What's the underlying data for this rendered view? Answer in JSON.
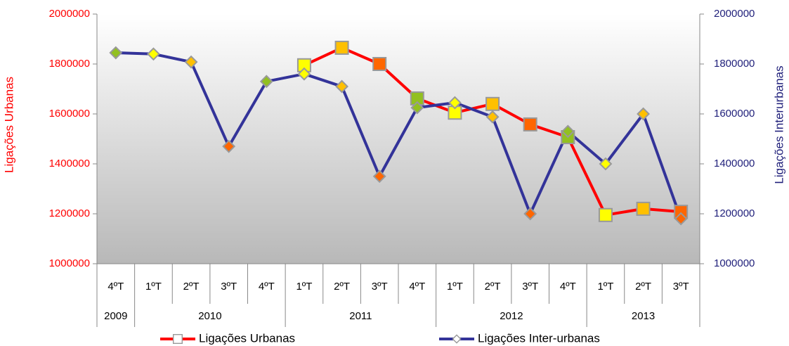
{
  "chart_data": {
    "type": "line",
    "categories": [
      "4ºT",
      "1ºT",
      "2ºT",
      "3ºT",
      "4ºT",
      "1ºT",
      "2ºT",
      "3ºT",
      "4ºT",
      "1ºT",
      "2ºT",
      "3ºT",
      "4ºT",
      "1ºT",
      "2ºT",
      "3ºT"
    ],
    "groups": [
      {
        "name": "2009",
        "count": 1
      },
      {
        "name": "2010",
        "count": 4
      },
      {
        "name": "2011",
        "count": 4
      },
      {
        "name": "2012",
        "count": 4
      },
      {
        "name": "2013",
        "count": 3
      }
    ],
    "y_label": "Ligações Urbanas",
    "y2_label": "Ligações Interurbanas",
    "ylim": [
      1000000,
      2000000
    ],
    "yticks": [
      1000000,
      1200000,
      1400000,
      1600000,
      1800000,
      2000000
    ],
    "y2lim": [
      1000000,
      2000000
    ],
    "y2ticks": [
      1000000,
      1200000,
      1400000,
      1600000,
      1800000,
      2000000
    ],
    "y_color": "#ff0000",
    "y2_color": "#1f1f7a",
    "series": [
      {
        "name": "Ligações Urbanas",
        "color": "#ff0000",
        "marker": "square",
        "values": [
          null,
          null,
          null,
          null,
          null,
          1795000,
          1865000,
          1800000,
          1662000,
          1605000,
          1640000,
          1558000,
          1507000,
          1195000,
          1220000,
          1208000
        ],
        "marker_colors": [
          null,
          null,
          null,
          null,
          null,
          "#ffff00",
          "#ffc000",
          "#ff6600",
          "#92c020",
          "#ffff00",
          "#ffc000",
          "#ff6600",
          "#92c020",
          "#ffff00",
          "#ffc000",
          "#ff6600"
        ]
      },
      {
        "name": "Ligações Inter-urbanas",
        "color": "#333399",
        "marker": "diamond",
        "axis": "y2",
        "values": [
          1845000,
          1840000,
          1808000,
          1470000,
          1730000,
          1760000,
          1710000,
          1350000,
          1625000,
          1645000,
          1588000,
          1200000,
          1530000,
          1400000,
          1600000,
          1180000
        ],
        "marker_colors": [
          "#92c020",
          "#ffff00",
          "#ffc000",
          "#ff6600",
          "#92c020",
          "#ffff00",
          "#ffc000",
          "#ff6600",
          "#92c020",
          "#ffff00",
          "#ffc000",
          "#ff6600",
          "#92c020",
          "#ffff00",
          "#ffc000",
          "#ff6600"
        ]
      }
    ]
  }
}
